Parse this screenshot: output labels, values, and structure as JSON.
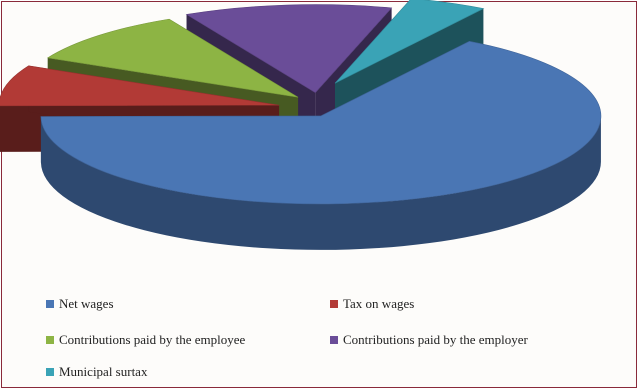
{
  "chart_data": {
    "type": "pie",
    "style": "3d-exploded",
    "title": "",
    "slices": [
      {
        "label": "Net wages",
        "value": 66.0,
        "color": "#4a76b4"
      },
      {
        "label": "Tax on wages",
        "value": 7.5,
        "color": "#b23a36"
      },
      {
        "label": "Contributions paid by the employee",
        "value": 10.0,
        "color": "#8db444"
      },
      {
        "label": "Contributions paid by the employer",
        "value": 12.0,
        "color": "#6a4d98"
      },
      {
        "label": "Municipal surtax",
        "value": 4.5,
        "color": "#3aa3b6"
      }
    ],
    "legend_position": "bottom"
  }
}
